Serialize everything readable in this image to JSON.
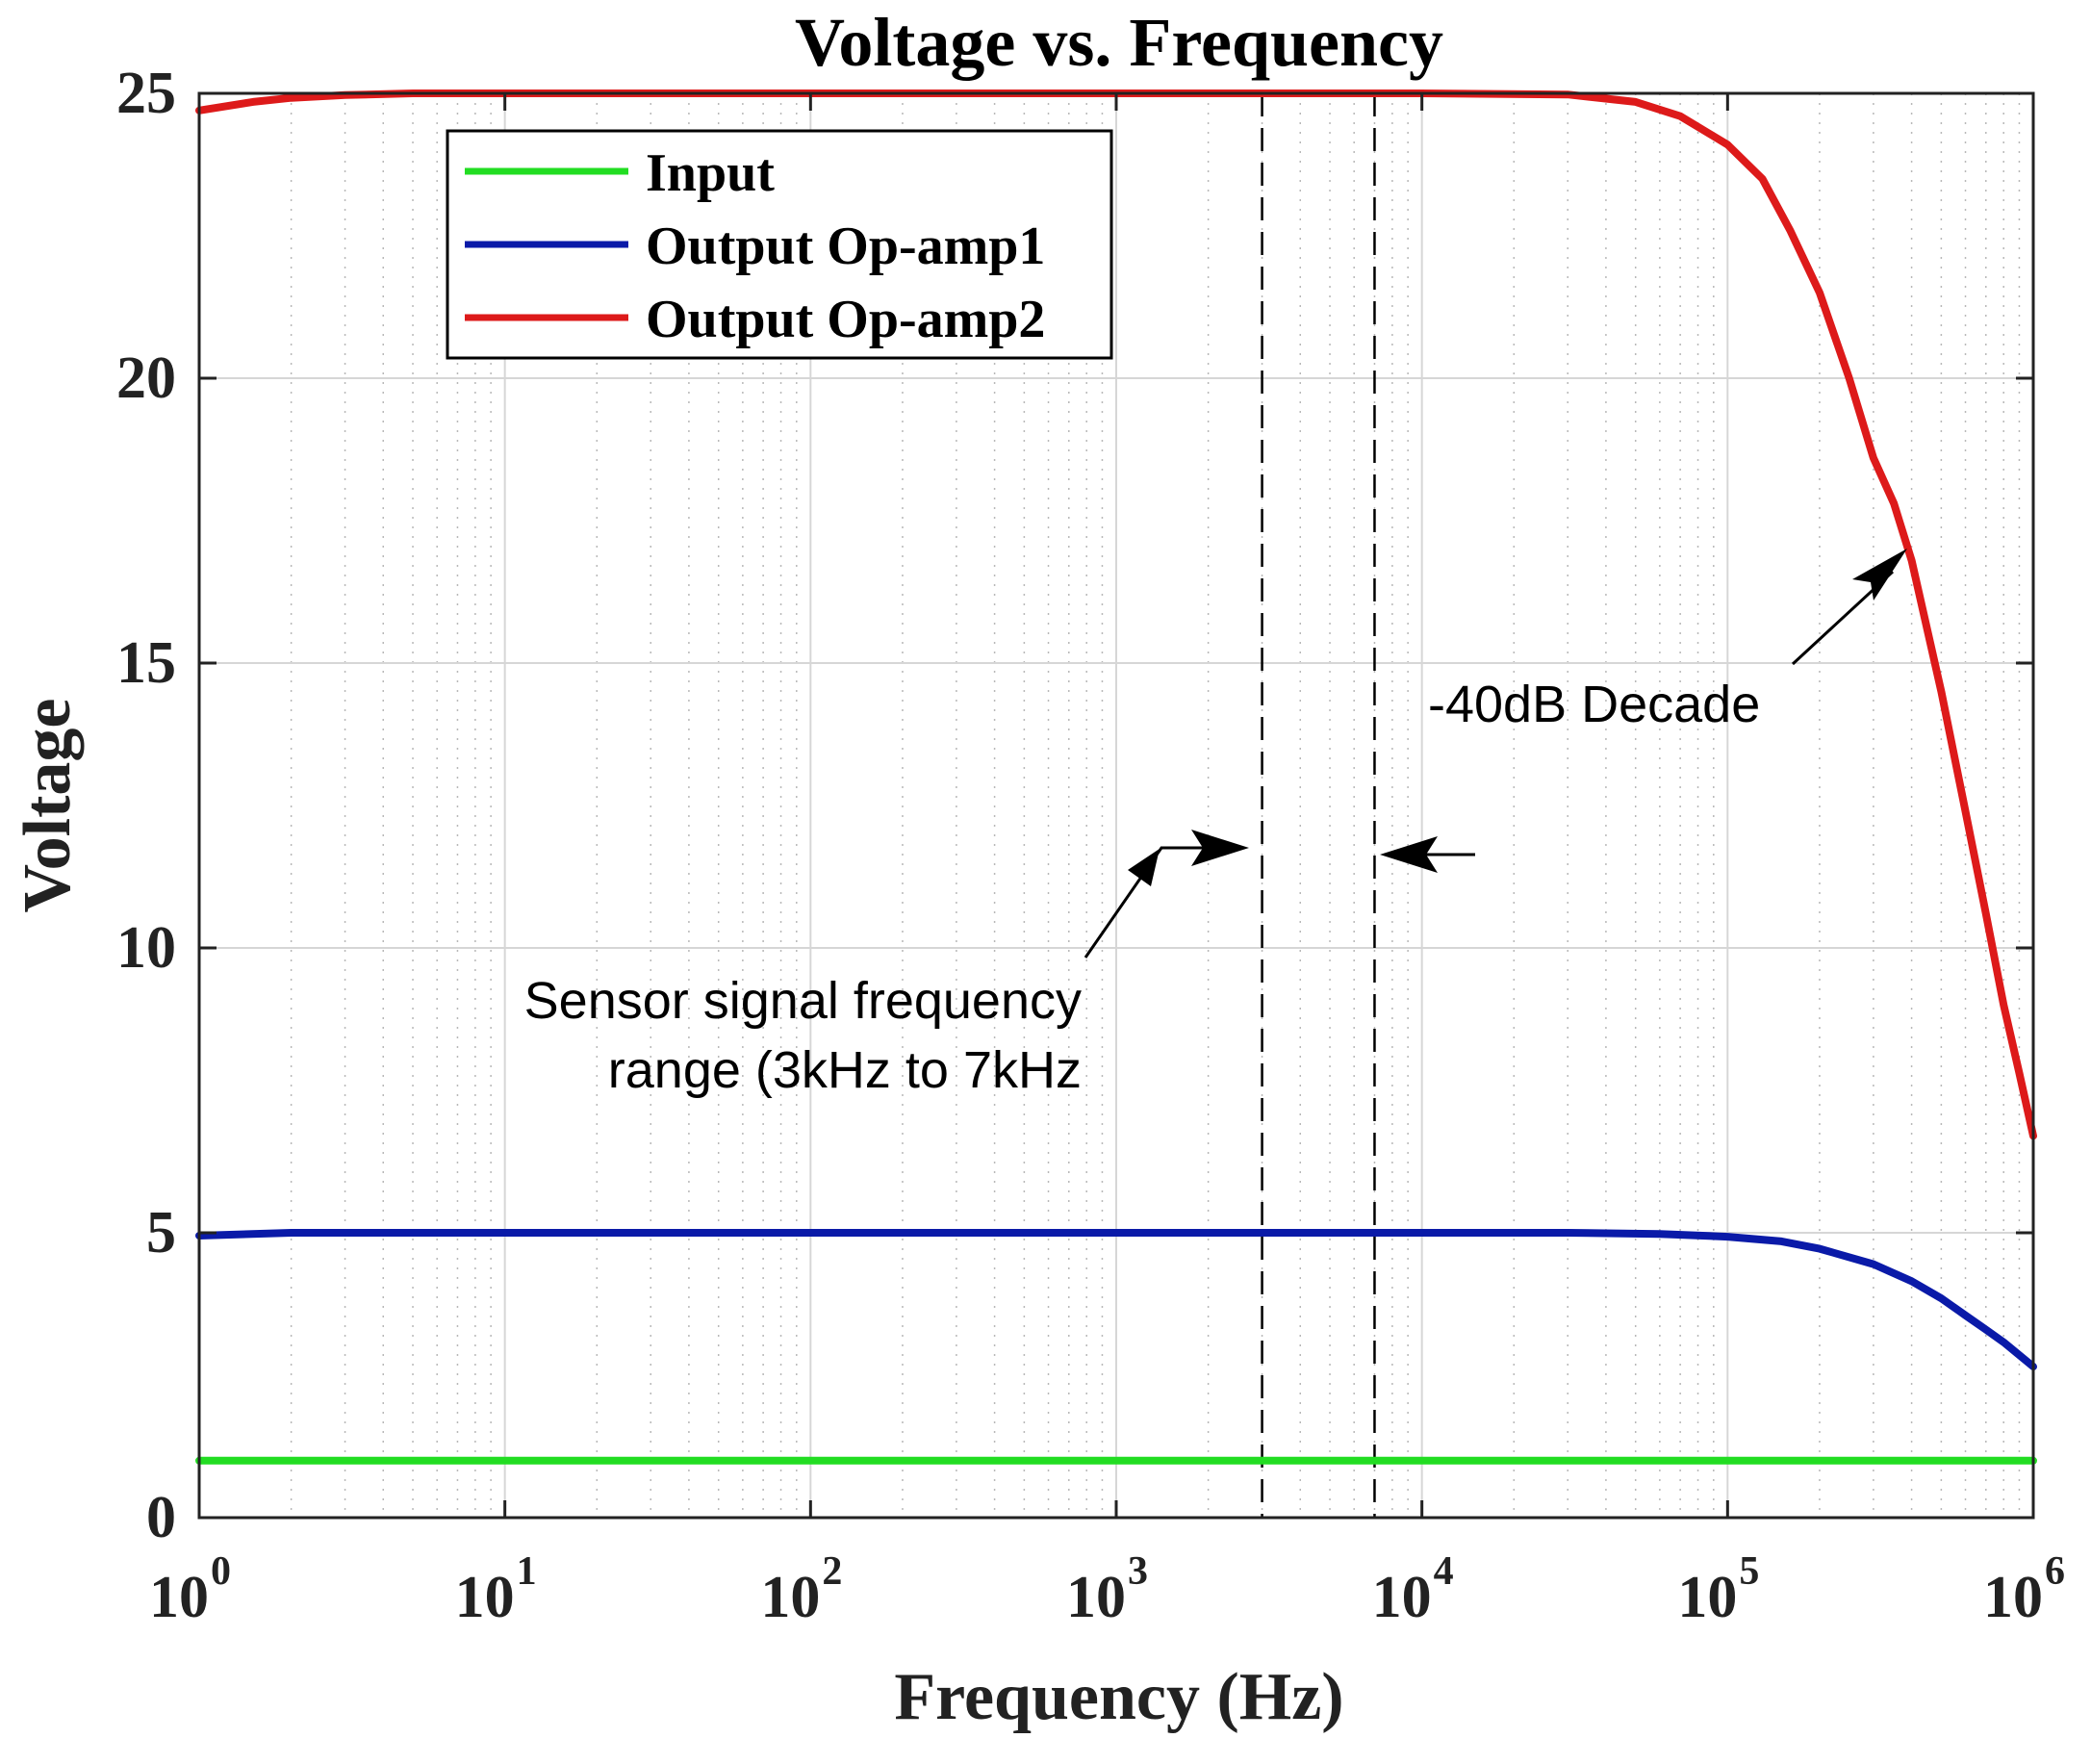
{
  "chart_data": {
    "type": "line",
    "title": "Voltage vs. Frequency",
    "xlabel": "Frequency (Hz)",
    "ylabel": "Voltage",
    "xscale": "log",
    "xlim": [
      1,
      1000000
    ],
    "ylim": [
      0,
      25
    ],
    "grid": true,
    "legend_position": "top-left",
    "x_ticks": [
      {
        "base": "10",
        "exp": "0",
        "value": 1
      },
      {
        "base": "10",
        "exp": "1",
        "value": 10
      },
      {
        "base": "10",
        "exp": "2",
        "value": 100
      },
      {
        "base": "10",
        "exp": "3",
        "value": 1000
      },
      {
        "base": "10",
        "exp": "4",
        "value": 10000
      },
      {
        "base": "10",
        "exp": "5",
        "value": 100000
      },
      {
        "base": "10",
        "exp": "6",
        "value": 1000000
      }
    ],
    "y_ticks": [
      {
        "label": "0",
        "value": 0
      },
      {
        "label": "5",
        "value": 5
      },
      {
        "label": "10",
        "value": 10
      },
      {
        "label": "15",
        "value": 15
      },
      {
        "label": "20",
        "value": 20
      },
      {
        "label": "25",
        "value": 25
      }
    ],
    "series": [
      {
        "name": "Input",
        "color": "#22dd22",
        "x": [
          1,
          10,
          100,
          1000,
          10000,
          100000,
          1000000
        ],
        "y": [
          1,
          1,
          1,
          1,
          1,
          1,
          1
        ]
      },
      {
        "name": "Output Op-amp1",
        "color": "#0a1aa8",
        "x": [
          1,
          2,
          10,
          100,
          1000,
          10000,
          30000,
          60000,
          100000,
          150000,
          200000,
          300000,
          400000,
          500000,
          600000,
          700000,
          800000,
          1000000
        ],
        "y": [
          4.95,
          5.0,
          5.0,
          5.0,
          5.0,
          5.0,
          5.0,
          4.98,
          4.93,
          4.85,
          4.72,
          4.45,
          4.15,
          3.85,
          3.55,
          3.3,
          3.08,
          2.65
        ]
      },
      {
        "name": "Output Op-amp2",
        "color": "#dd1a1a",
        "x": [
          1,
          1.5,
          2,
          3,
          5,
          10,
          100,
          1000,
          10000,
          30000,
          50000,
          70000,
          100000,
          130000,
          160000,
          200000,
          250000,
          300000,
          350000,
          400000,
          500000,
          600000,
          700000,
          800000,
          900000,
          1000000
        ],
        "y": [
          24.7,
          24.85,
          24.92,
          24.97,
          25.0,
          25.0,
          25.0,
          25.0,
          25.0,
          24.98,
          24.85,
          24.6,
          24.1,
          23.5,
          22.6,
          21.5,
          20.0,
          18.6,
          17.8,
          16.8,
          14.5,
          12.4,
          10.6,
          9.0,
          7.8,
          6.7
        ]
      }
    ],
    "reference_lines": [
      {
        "name": "f-low",
        "x": 3000
      },
      {
        "name": "f-high",
        "x": 7000
      }
    ],
    "annotations": {
      "sensor_range_line1": "Sensor signal frequency",
      "sensor_range_line2": "range (3kHz to 7kHz",
      "slope_label": "-40dB Decade"
    }
  }
}
